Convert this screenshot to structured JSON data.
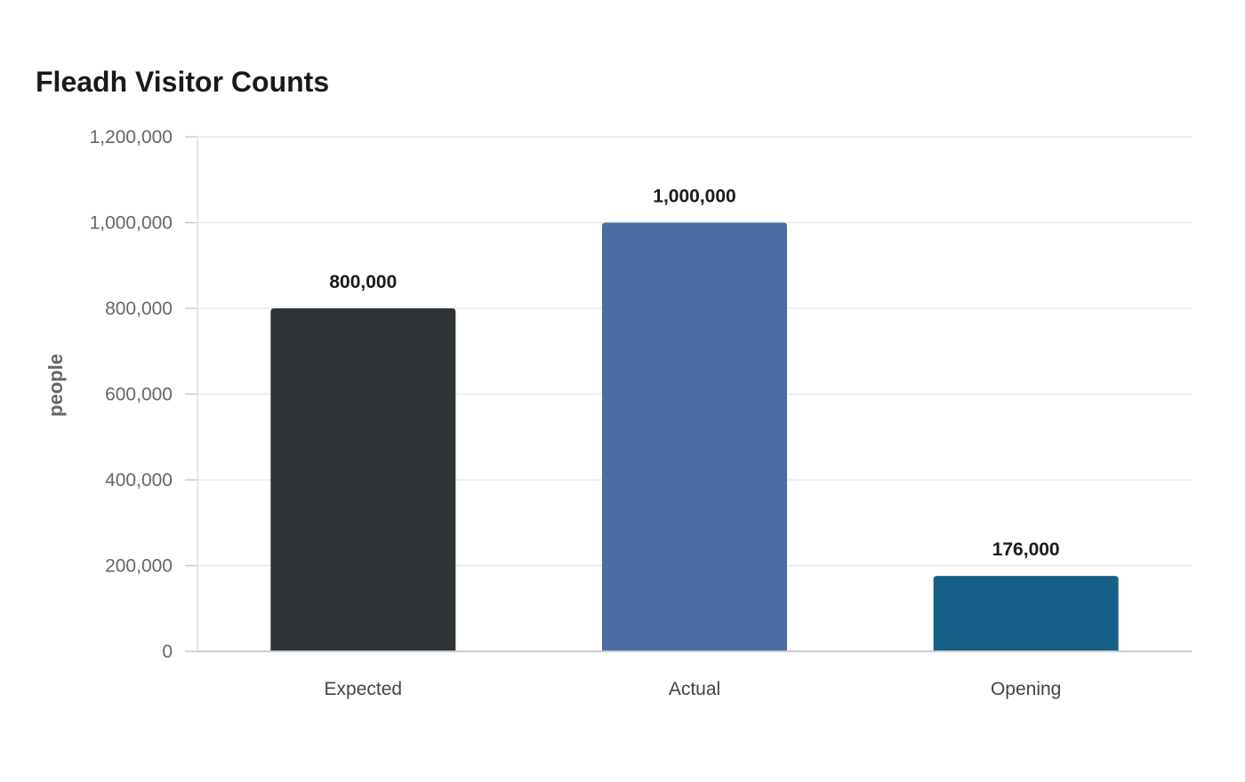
{
  "chart_data": {
    "type": "bar",
    "title": "Fleadh Visitor Counts",
    "xlabel": "",
    "ylabel": "people",
    "categories": [
      "Expected",
      "Actual",
      "Opening"
    ],
    "values": [
      800000,
      1000000,
      176000
    ],
    "value_labels": [
      "800,000",
      "1,000,000",
      "176,000"
    ],
    "colors": [
      "#2e3436",
      "#4a6ea3",
      "#165f87"
    ],
    "ylim": [
      0,
      1200000
    ],
    "yticks": [
      0,
      200000,
      400000,
      600000,
      800000,
      1000000,
      1200000
    ],
    "ytick_labels": [
      "0",
      "200,000",
      "400,000",
      "600,000",
      "800,000",
      "1,000,000",
      "1,200,000"
    ],
    "grid": true,
    "legend": "none"
  }
}
